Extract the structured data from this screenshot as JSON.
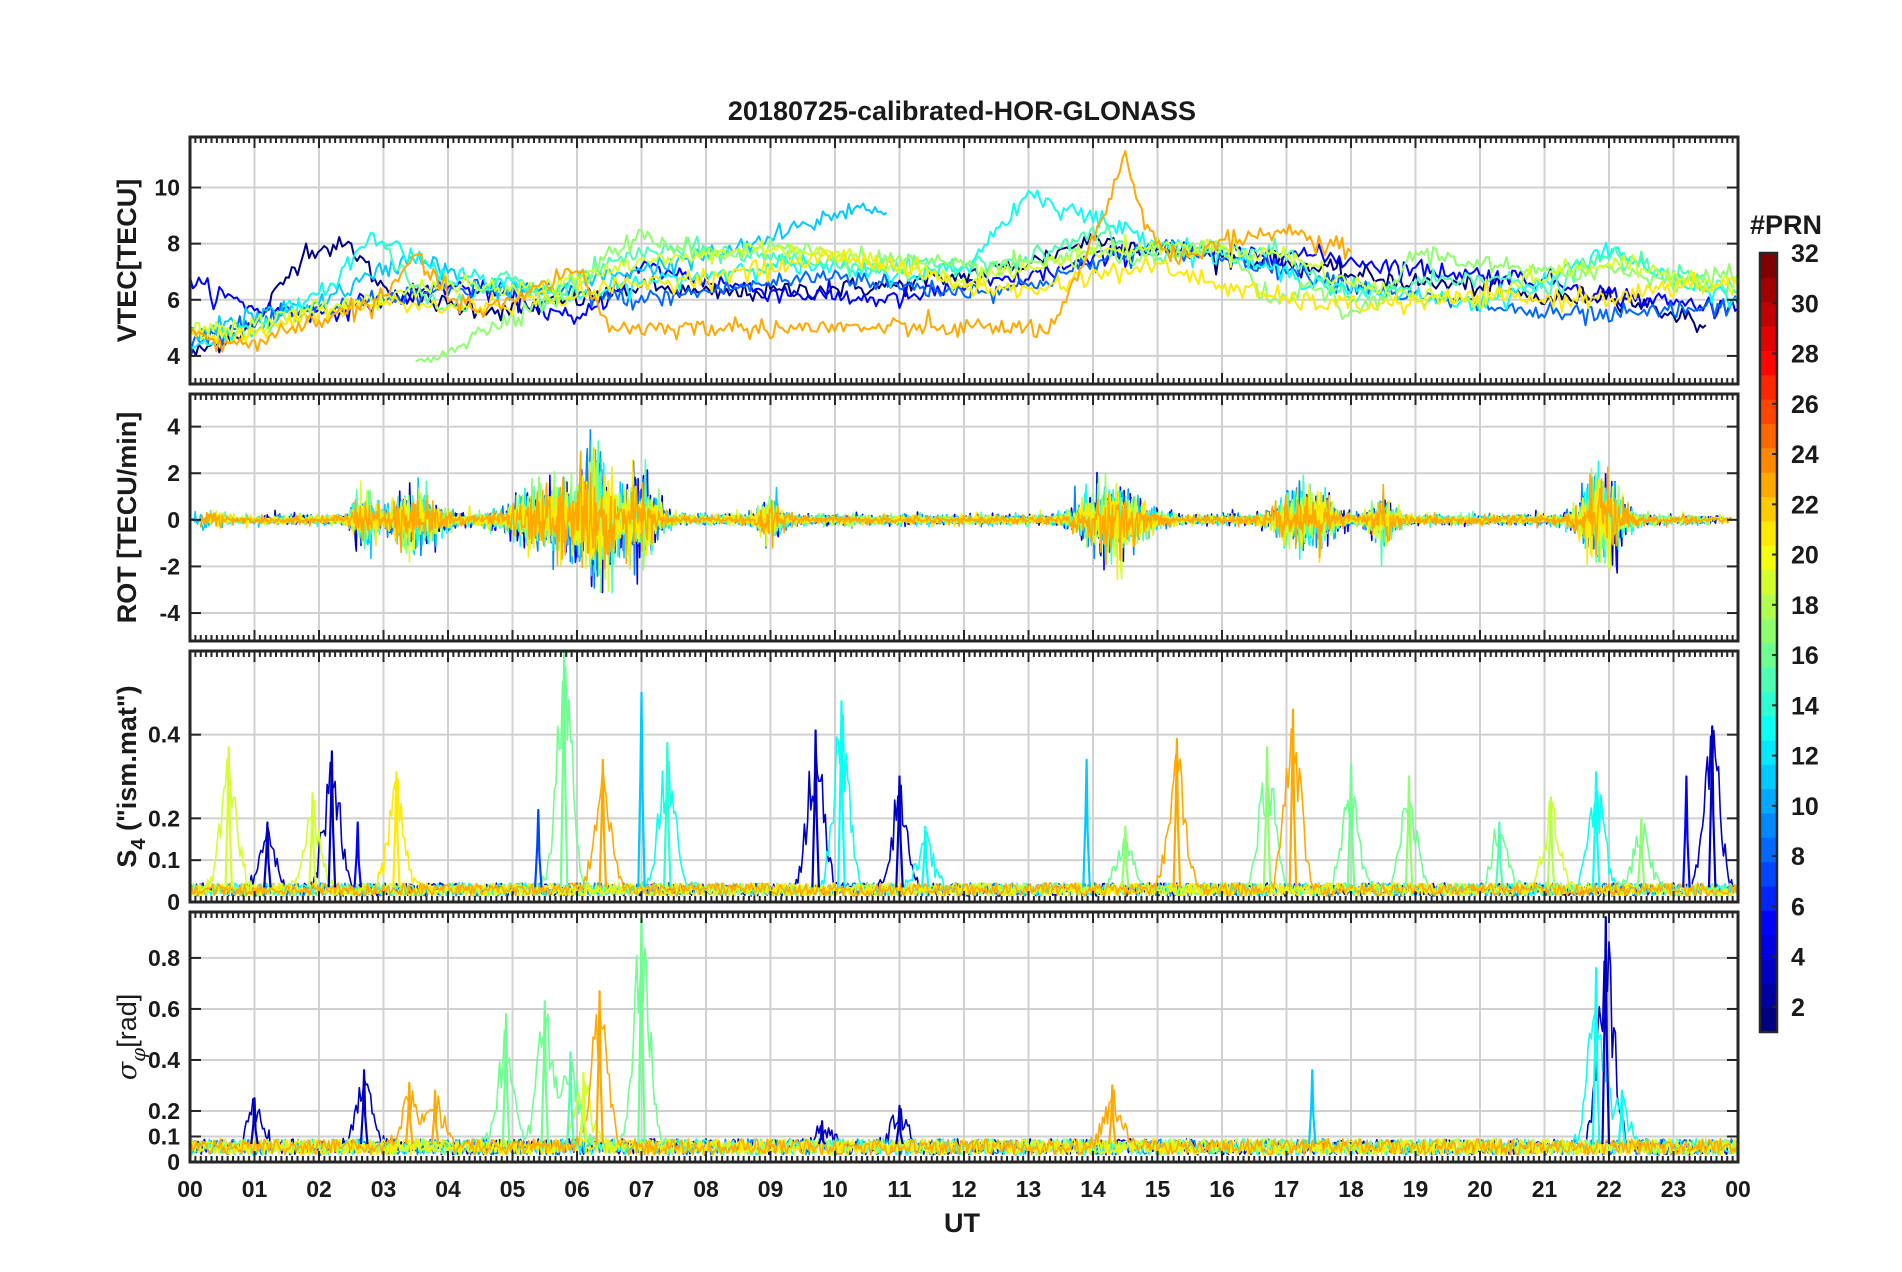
{
  "chart_data": {
    "type": "line",
    "title": "20180725-calibrated-HOR-GLONASS",
    "xlabel": "UT",
    "x_ticks": [
      "00",
      "01",
      "02",
      "03",
      "04",
      "05",
      "06",
      "07",
      "08",
      "09",
      "10",
      "11",
      "12",
      "13",
      "14",
      "15",
      "16",
      "17",
      "18",
      "19",
      "20",
      "21",
      "22",
      "23",
      "00"
    ],
    "xlim": [
      0,
      24
    ],
    "grid": true,
    "panels": [
      {
        "id": "vtec",
        "ylabel": "VTEC[TECU]",
        "ylim": [
          3,
          11.8
        ],
        "yticks": [
          "4",
          "6",
          "8",
          "10"
        ],
        "ytick_values": [
          4,
          6,
          8,
          10
        ],
        "series": [
          {
            "prn": 1,
            "x": [
              0,
              1,
              1.8,
              2.5,
              3,
              4,
              5,
              6,
              7,
              8,
              9,
              10,
              11,
              12,
              13,
              14,
              15,
              16,
              17,
              18,
              19,
              20,
              21,
              22,
              23,
              23.5
            ],
            "y": [
              4.0,
              5.1,
              7.8,
              7.9,
              6.4,
              5.8,
              5.6,
              6.0,
              6.5,
              6.2,
              6.3,
              6.4,
              6.5,
              6.9,
              7.3,
              8.2,
              7.8,
              7.5,
              7.3,
              6.9,
              6.6,
              6.5,
              6.0,
              6.2,
              5.5,
              5.1
            ]
          },
          {
            "prn": 5,
            "x": [
              0,
              1,
              2,
              3,
              4,
              5,
              6,
              7,
              8,
              9,
              10,
              11,
              12,
              13,
              14,
              15,
              16,
              17,
              18,
              19,
              20,
              21,
              22,
              23,
              24
            ],
            "y": [
              6.6,
              5.7,
              5.5,
              6.0,
              6.5,
              6.1,
              5.2,
              7.2,
              6.7,
              6.3,
              6.1,
              6.0,
              6.5,
              6.8,
              7.4,
              7.9,
              7.6,
              7.7,
              7.4,
              7.1,
              6.9,
              6.7,
              6.2,
              5.9,
              5.7
            ]
          },
          {
            "prn": 8,
            "x": [
              0,
              1,
              2,
              3,
              4,
              5,
              6,
              7,
              8,
              9,
              10,
              11,
              12,
              13,
              14,
              15,
              16,
              17,
              18,
              19,
              20,
              21,
              22,
              23,
              24
            ],
            "y": [
              4.6,
              5.1,
              5.6,
              6.1,
              6.3,
              6.4,
              6.2,
              6.0,
              6.3,
              6.6,
              6.9,
              6.5,
              6.3,
              6.5,
              7.3,
              7.9,
              7.6,
              7.1,
              6.6,
              6.1,
              5.8,
              5.5,
              5.4,
              5.6,
              5.8
            ]
          },
          {
            "prn": 11,
            "x": [
              0,
              1,
              2,
              2.8,
              3.5,
              4.5,
              5.5,
              6.5,
              7.5,
              8.5,
              9.5,
              10.3,
              10.8
            ],
            "y": [
              4.8,
              5.4,
              5.9,
              6.8,
              7.6,
              6.4,
              6.3,
              6.9,
              7.3,
              7.8,
              8.6,
              9.3,
              9.1
            ]
          },
          {
            "prn": 13,
            "x": [
              0,
              1,
              2,
              2.8,
              3.2,
              4,
              5,
              6,
              7,
              8,
              9,
              10,
              11,
              12,
              13,
              14,
              15,
              16,
              17,
              18,
              19,
              20,
              21,
              22,
              23,
              24
            ],
            "y": [
              4.4,
              5.0,
              6.1,
              8.2,
              7.9,
              6.9,
              6.6,
              6.1,
              6.6,
              6.9,
              7.3,
              7.1,
              6.9,
              7.1,
              9.8,
              8.9,
              8.1,
              7.6,
              6.9,
              6.4,
              6.1,
              5.9,
              6.6,
              7.9,
              6.6,
              6.1
            ]
          },
          {
            "prn": 15,
            "x": [
              3,
              3.5,
              4,
              5,
              5.5,
              6,
              7,
              8,
              9,
              10,
              11,
              12,
              13,
              14,
              15,
              16,
              17,
              18,
              19,
              20,
              21,
              22,
              23,
              24
            ],
            "y": [
              7.8,
              6.4,
              5.6,
              6.9,
              5.8,
              6.8,
              7.7,
              7.8,
              7.5,
              7.3,
              7.1,
              7.3,
              7.4,
              8.4,
              7.4,
              7.9,
              7.6,
              5.9,
              6.6,
              6.9,
              6.3,
              7.6,
              6.9,
              6.3
            ]
          },
          {
            "prn": 17,
            "x": [
              3.5,
              4.2,
              5,
              6,
              6.5,
              7,
              7.6,
              8.2,
              9,
              10,
              11,
              12,
              13,
              14,
              15,
              16,
              16.8,
              17.5,
              18,
              18.5,
              19,
              20,
              21,
              22,
              23,
              24
            ],
            "y": [
              3.8,
              4.4,
              5.5,
              6.3,
              7.7,
              8.2,
              7.9,
              7.6,
              7.9,
              7.6,
              7.4,
              7.1,
              7.3,
              7.7,
              7.5,
              7.9,
              5.8,
              6.6,
              5.3,
              6.1,
              7.7,
              7.3,
              6.9,
              7.1,
              6.7,
              6.9
            ]
          },
          {
            "prn": 19,
            "x": [
              0,
              1,
              2,
              3,
              4,
              5,
              6,
              7,
              8,
              9,
              10,
              11,
              12,
              13,
              14,
              15,
              16,
              17,
              18,
              19,
              20,
              21,
              22,
              23,
              24
            ],
            "y": [
              4.9,
              5.1,
              5.7,
              6.1,
              6.6,
              6.3,
              6.9,
              7.3,
              7.6,
              7.9,
              7.6,
              7.2,
              6.7,
              7.1,
              7.7,
              7.9,
              7.8,
              7.6,
              6.6,
              6.1,
              6.1,
              6.9,
              7.3,
              6.9,
              6.5
            ]
          },
          {
            "prn": 21,
            "x": [
              0,
              0.5,
              1,
              2,
              3,
              4,
              5,
              6,
              7,
              8,
              9,
              10,
              11,
              12,
              13,
              14,
              15,
              16,
              17,
              18,
              19,
              20,
              21,
              22,
              23,
              24
            ],
            "y": [
              5.0,
              4.6,
              4.8,
              5.5,
              5.9,
              5.7,
              5.9,
              6.2,
              6.6,
              6.8,
              7.1,
              7.6,
              7.2,
              6.5,
              6.3,
              6.9,
              7.2,
              6.5,
              6.0,
              5.8,
              5.9,
              6.1,
              6.0,
              6.1,
              6.4,
              6.6
            ]
          },
          {
            "prn": 23,
            "x": [
              0,
              0.5,
              1,
              2,
              3,
              3.5,
              4,
              4.5,
              5,
              6,
              6.5,
              13.4,
              13.8,
              14.2,
              14.5,
              14.8,
              15.2,
              16,
              16.5,
              17,
              17.5,
              18
            ],
            "y": [
              5.0,
              4.3,
              4.5,
              5.3,
              6.0,
              7.6,
              6.1,
              5.6,
              5.9,
              7.2,
              5.0,
              5.0,
              7.0,
              9.1,
              11.1,
              8.8,
              7.5,
              8.0,
              8.3,
              8.5,
              8.0,
              7.7
            ]
          }
        ]
      },
      {
        "id": "rot",
        "ylabel": "ROT [TECU/min]",
        "ylim": [
          -5.2,
          5.4
        ],
        "yticks": [
          "-4",
          "-2",
          "0",
          "2",
          "4"
        ],
        "ytick_values": [
          -4,
          -2,
          0,
          2,
          4
        ],
        "activity": [
          {
            "center": 0.3,
            "width": 0.3,
            "amp": 0.5
          },
          {
            "center": 2.7,
            "width": 0.3,
            "amp": 1.5
          },
          {
            "center": 3.5,
            "width": 0.6,
            "amp": 2.0
          },
          {
            "center": 5.5,
            "width": 0.8,
            "amp": 2.2
          },
          {
            "center": 6.3,
            "width": 0.5,
            "amp": 4.5
          },
          {
            "center": 7.0,
            "width": 0.4,
            "amp": 3.0
          },
          {
            "center": 9.0,
            "width": 0.3,
            "amp": 1.4
          },
          {
            "center": 14.3,
            "width": 0.7,
            "amp": 2.6
          },
          {
            "center": 17.3,
            "width": 0.6,
            "amp": 2.4
          },
          {
            "center": 18.5,
            "width": 0.3,
            "amp": 1.6
          },
          {
            "center": 21.9,
            "width": 0.5,
            "amp": 3.2
          }
        ],
        "baseline_amp": 0.35
      },
      {
        "id": "s4",
        "ylabel": "S4 (\"ism.mat\")",
        "ylabel_main": "S",
        "ylabel_sub": "4",
        "ylabel_rest": " (\"ism.mat\")",
        "ylim": [
          0,
          0.6
        ],
        "yticks": [
          "0",
          "0.1",
          "0.2",
          "0.4"
        ],
        "ytick_values": [
          0,
          0.1,
          0.2,
          0.4
        ],
        "peaks": [
          {
            "x": 0.6,
            "y": 0.37,
            "prn": 19
          },
          {
            "x": 1.2,
            "y": 0.19,
            "prn": 3
          },
          {
            "x": 1.9,
            "y": 0.26,
            "prn": 19
          },
          {
            "x": 2.2,
            "y": 0.36,
            "prn": 3
          },
          {
            "x": 2.6,
            "y": 0.19,
            "prn": 5
          },
          {
            "x": 3.2,
            "y": 0.31,
            "prn": 21
          },
          {
            "x": 5.4,
            "y": 0.22,
            "prn": 7
          },
          {
            "x": 5.8,
            "y": 0.6,
            "prn": 16
          },
          {
            "x": 6.4,
            "y": 0.34,
            "prn": 23
          },
          {
            "x": 7.0,
            "y": 0.5,
            "prn": 11
          },
          {
            "x": 7.4,
            "y": 0.38,
            "prn": 14
          },
          {
            "x": 9.7,
            "y": 0.41,
            "prn": 3
          },
          {
            "x": 10.1,
            "y": 0.48,
            "prn": 13
          },
          {
            "x": 11.0,
            "y": 0.3,
            "prn": 3
          },
          {
            "x": 11.4,
            "y": 0.18,
            "prn": 13
          },
          {
            "x": 13.9,
            "y": 0.34,
            "prn": 11
          },
          {
            "x": 14.5,
            "y": 0.18,
            "prn": 17
          },
          {
            "x": 15.3,
            "y": 0.39,
            "prn": 23
          },
          {
            "x": 16.7,
            "y": 0.37,
            "prn": 17
          },
          {
            "x": 17.1,
            "y": 0.46,
            "prn": 23
          },
          {
            "x": 18.0,
            "y": 0.33,
            "prn": 16
          },
          {
            "x": 18.9,
            "y": 0.3,
            "prn": 17
          },
          {
            "x": 20.3,
            "y": 0.19,
            "prn": 15
          },
          {
            "x": 21.1,
            "y": 0.25,
            "prn": 18
          },
          {
            "x": 21.8,
            "y": 0.31,
            "prn": 13
          },
          {
            "x": 22.5,
            "y": 0.2,
            "prn": 17
          },
          {
            "x": 23.2,
            "y": 0.3,
            "prn": 5
          },
          {
            "x": 23.6,
            "y": 0.42,
            "prn": 3
          }
        ]
      },
      {
        "id": "sigma",
        "ylabel": "σφ[rad]",
        "ylabel_main": "σ",
        "ylabel_sub": "φ",
        "ylabel_rest": "[rad]",
        "ylim": [
          0,
          0.98
        ],
        "yticks": [
          "0",
          "0.1",
          "0.2",
          "0.4",
          "0.6",
          "0.8"
        ],
        "ytick_values": [
          0,
          0.1,
          0.2,
          0.4,
          0.6,
          0.8
        ],
        "peaks": [
          {
            "x": 1.0,
            "y": 0.25,
            "prn": 3
          },
          {
            "x": 2.7,
            "y": 0.36,
            "prn": 3
          },
          {
            "x": 3.4,
            "y": 0.31,
            "prn": 23
          },
          {
            "x": 3.8,
            "y": 0.28,
            "prn": 23
          },
          {
            "x": 4.9,
            "y": 0.58,
            "prn": 16
          },
          {
            "x": 5.5,
            "y": 0.63,
            "prn": 16
          },
          {
            "x": 5.9,
            "y": 0.43,
            "prn": 15
          },
          {
            "x": 6.1,
            "y": 0.35,
            "prn": 19
          },
          {
            "x": 6.35,
            "y": 0.67,
            "prn": 23
          },
          {
            "x": 7.0,
            "y": 0.98,
            "prn": 16
          },
          {
            "x": 9.8,
            "y": 0.16,
            "prn": 3
          },
          {
            "x": 11.0,
            "y": 0.22,
            "prn": 3
          },
          {
            "x": 14.3,
            "y": 0.3,
            "prn": 23
          },
          {
            "x": 17.4,
            "y": 0.36,
            "prn": 11
          },
          {
            "x": 21.8,
            "y": 0.76,
            "prn": 13
          },
          {
            "x": 21.95,
            "y": 0.96,
            "prn": 3
          },
          {
            "x": 22.2,
            "y": 0.28,
            "prn": 13
          }
        ]
      }
    ],
    "colorbar": {
      "label": "#PRN",
      "range": [
        1,
        32
      ],
      "ticks": [
        "2",
        "4",
        "6",
        "8",
        "10",
        "12",
        "14",
        "16",
        "18",
        "20",
        "22",
        "24",
        "26",
        "28",
        "30",
        "32"
      ],
      "tick_values": [
        2,
        4,
        6,
        8,
        10,
        12,
        14,
        16,
        18,
        20,
        22,
        24,
        26,
        28,
        30,
        32
      ],
      "colormap": "jet"
    }
  }
}
